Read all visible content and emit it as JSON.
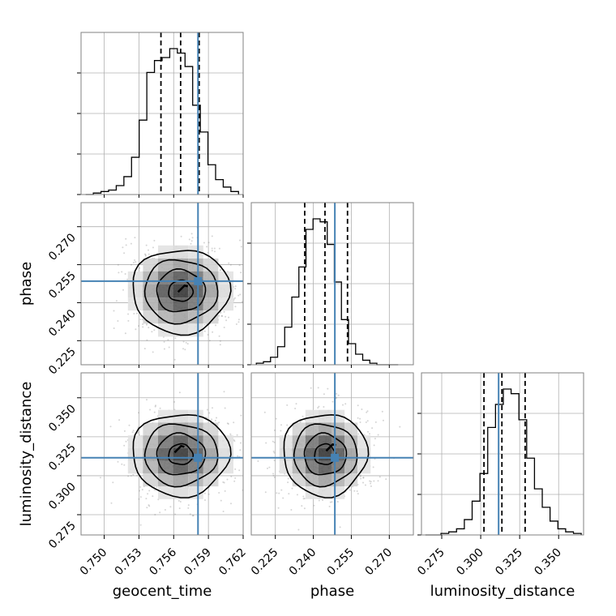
{
  "chart_data": {
    "type": "corner",
    "grid": true,
    "parameters": [
      {
        "name": "geocent_time",
        "label": "geocent_time",
        "range": [
          0.748,
          0.762
        ],
        "ticks": [
          "0.750",
          "0.753",
          "0.756",
          "0.759",
          "0.762"
        ],
        "tick_values": [
          0.75,
          0.753,
          0.756,
          0.759,
          0.762
        ],
        "truth": 0.7581,
        "quantiles": [
          0.7549,
          0.7566,
          0.7582
        ],
        "hist_edges_range": [
          0.7484,
          0.7616
        ],
        "hist_counts": [
          0,
          1,
          2,
          3,
          6,
          12,
          25,
          50,
          82,
          90,
          92,
          98,
          95,
          86,
          60,
          42,
          20,
          10,
          5,
          2
        ]
      },
      {
        "name": "phase",
        "label": "phase",
        "range": [
          0.2155,
          0.2795
        ],
        "ticks": [
          "0.225",
          "0.240",
          "0.255",
          "0.270"
        ],
        "tick_values": [
          0.225,
          0.24,
          0.255,
          0.27
        ],
        "truth": 0.2485,
        "quantiles": [
          0.2366,
          0.2446,
          0.2535
        ],
        "hist_edges_range": [
          0.2175,
          0.2735
        ],
        "hist_counts": [
          1,
          2,
          5,
          12,
          25,
          45,
          65,
          90,
          97,
          95,
          80,
          55,
          30,
          14,
          7,
          3,
          1,
          0,
          0,
          0
        ]
      },
      {
        "name": "luminosity_distance",
        "label": "luminosity_distance",
        "range": [
          0.262,
          0.366
        ],
        "ticks": [
          "0.275",
          "0.300",
          "0.325",
          "0.350"
        ],
        "tick_values": [
          0.275,
          0.3,
          0.325,
          0.35
        ],
        "truth": 0.3115,
        "quantiles": [
          0.3021,
          0.3136,
          0.3285
        ],
        "hist_edges_range": [
          0.2645,
          0.3645
        ],
        "hist_counts": [
          0,
          0,
          1,
          2,
          4,
          10,
          22,
          40,
          70,
          85,
          95,
          92,
          75,
          50,
          30,
          18,
          9,
          4,
          2,
          1
        ]
      }
    ],
    "pairs": [
      {
        "x": "geocent_time",
        "y": "phase",
        "center": [
          0.7566,
          0.2446
        ],
        "sigma": [
          0.0021,
          0.0083
        ],
        "peak": [
          0.7568,
          0.2455
        ]
      },
      {
        "x": "geocent_time",
        "y": "luminosity_distance",
        "center": [
          0.7566,
          0.3136
        ],
        "sigma": [
          0.0021,
          0.0132
        ],
        "peak": [
          0.7565,
          0.317
        ]
      },
      {
        "x": "phase",
        "y": "luminosity_distance",
        "center": [
          0.2446,
          0.3136
        ],
        "sigma": [
          0.0083,
          0.0132
        ],
        "peak": [
          0.247,
          0.318
        ]
      }
    ],
    "colors": {
      "truth": "#4682b4",
      "hist": "#000000",
      "quantile": "#000000",
      "grid": "#b0b0b0",
      "scatter": "#888888"
    }
  }
}
